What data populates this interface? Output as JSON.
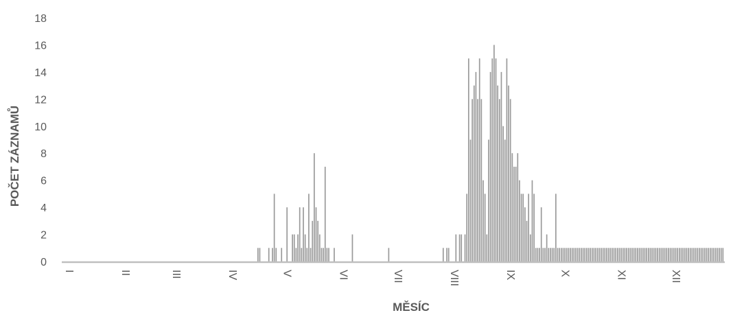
{
  "chart_data": {
    "type": "bar",
    "xlabel": "MĚSÍC",
    "ylabel": "POČET ZÁZNAMŮ",
    "ylim": [
      0,
      18
    ],
    "yticks": [
      0,
      2,
      4,
      6,
      8,
      10,
      12,
      14,
      16,
      18
    ],
    "grid": false,
    "legend": "none",
    "bar_color": "#9a9a9a",
    "axis_color": "#bfbfbf",
    "x_domain": [
      0,
      365
    ],
    "months": [
      {
        "label": "I",
        "day": 0
      },
      {
        "label": "II",
        "day": 31
      },
      {
        "label": "III",
        "day": 59
      },
      {
        "label": "IV",
        "day": 90
      },
      {
        "label": "V",
        "day": 120
      },
      {
        "label": "VI",
        "day": 151
      },
      {
        "label": "VII",
        "day": 181
      },
      {
        "label": "VIII",
        "day": 212
      },
      {
        "label": "IX",
        "day": 243
      },
      {
        "label": "X",
        "day": 273
      },
      {
        "label": "XI",
        "day": 304
      },
      {
        "label": "XII",
        "day": 334
      }
    ],
    "day": [
      108,
      109,
      114,
      116,
      117,
      118,
      121,
      124,
      127,
      128,
      129,
      130,
      131,
      132,
      133,
      134,
      135,
      136,
      137,
      138,
      139,
      140,
      141,
      142,
      143,
      144,
      145,
      146,
      147,
      150,
      160,
      180,
      210,
      212,
      213,
      217,
      219,
      220,
      222,
      223,
      224,
      225,
      226,
      227,
      228,
      229,
      230,
      231,
      232,
      233,
      234,
      235,
      236,
      237,
      238,
      239,
      240,
      241,
      242,
      243,
      244,
      245,
      246,
      247,
      248,
      249,
      250,
      251,
      252,
      253,
      254,
      255,
      256,
      257,
      258,
      259,
      260,
      261,
      262,
      263,
      264,
      265,
      266,
      267,
      268,
      269,
      270,
      271,
      272,
      273,
      274,
      275,
      276,
      277,
      278,
      279,
      280,
      281,
      282,
      283,
      284,
      285,
      286,
      287,
      288,
      289,
      290,
      291,
      292,
      293,
      294,
      295,
      296,
      297,
      298,
      299,
      300,
      301,
      302,
      303,
      304,
      305,
      306,
      307,
      308,
      309,
      310,
      311,
      312,
      313,
      314,
      315,
      316,
      317,
      318,
      319,
      320,
      321,
      322,
      323,
      324,
      325,
      326,
      327,
      328,
      329,
      330,
      331,
      332,
      333,
      334,
      335,
      336,
      337,
      338,
      339,
      340,
      341,
      342,
      343,
      344,
      345,
      346,
      347,
      348,
      349,
      350,
      351,
      352,
      353,
      354,
      355,
      356,
      357,
      358,
      359,
      360,
      361,
      362,
      363,
      364
    ],
    "count": [
      1,
      1,
      1,
      1,
      5,
      1,
      1,
      4,
      2,
      2,
      1,
      2,
      4,
      1,
      4,
      2,
      1,
      5,
      1,
      3,
      8,
      4,
      3,
      2,
      1,
      1,
      7,
      1,
      1,
      1,
      2,
      1,
      1,
      1,
      1,
      2,
      2,
      2,
      2,
      5,
      15,
      9,
      12,
      13,
      14,
      12,
      15,
      12,
      6,
      5,
      2,
      9,
      14,
      15,
      16,
      15,
      13,
      12,
      14,
      10,
      9,
      15,
      13,
      12,
      8,
      7,
      7,
      8,
      6,
      5,
      5,
      4,
      3,
      5,
      2,
      6,
      5,
      1,
      1,
      1,
      4,
      1,
      1,
      2,
      1,
      1,
      1,
      1,
      5,
      1,
      1,
      1,
      1,
      1,
      1,
      1,
      1,
      1,
      1,
      1,
      1,
      1,
      1,
      1,
      1,
      1,
      1,
      1,
      1,
      1,
      1,
      1,
      1,
      1,
      1,
      1,
      1,
      1,
      1,
      1,
      1,
      1,
      1,
      1,
      1,
      1,
      1,
      1,
      1,
      1,
      1,
      1,
      1,
      1,
      1,
      1,
      1,
      1,
      1,
      1,
      1,
      1,
      1,
      1,
      1,
      1,
      1,
      1,
      1,
      1,
      1,
      1,
      1,
      1,
      1,
      1,
      1,
      1,
      1,
      1,
      1,
      1,
      1,
      1,
      1,
      1,
      1,
      1,
      1,
      1,
      1,
      1,
      1,
      1,
      1,
      1,
      1,
      1,
      1,
      1,
      1
    ]
  }
}
